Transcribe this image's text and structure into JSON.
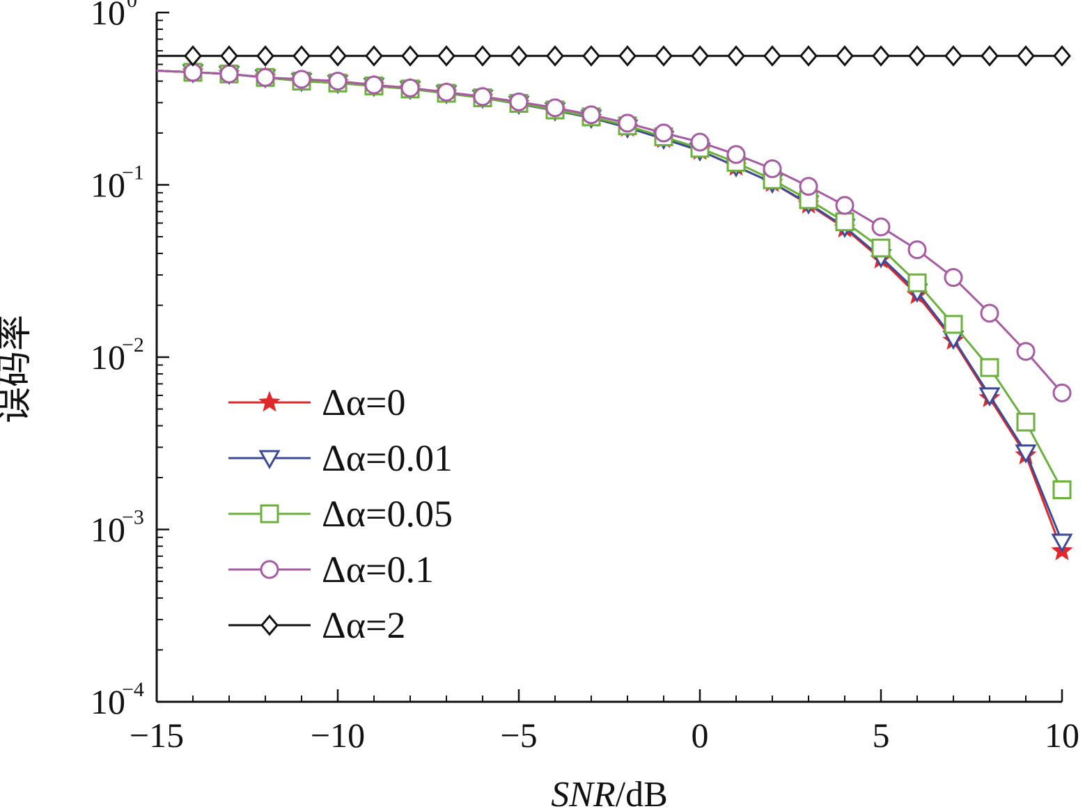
{
  "chart_data": {
    "type": "line",
    "xlabel": {
      "italic": "SNR",
      "unit": "/dB"
    },
    "ylabel": "误码率",
    "xlim": [
      -15,
      10
    ],
    "ylim": [
      0.0001,
      1
    ],
    "yscale": "log",
    "grid": false,
    "legend_position": "lower-left",
    "x_ticks": [
      {
        "value": -15,
        "label": "−15"
      },
      {
        "value": -10,
        "label": "−10"
      },
      {
        "value": -5,
        "label": "−5"
      },
      {
        "value": 0,
        "label": "0"
      },
      {
        "value": 5,
        "label": "5"
      },
      {
        "value": 10,
        "label": "10"
      }
    ],
    "y_ticks": [
      {
        "value": 1,
        "base": "10",
        "exp": "0"
      },
      {
        "value": 0.1,
        "base": "10",
        "exp": "−1"
      },
      {
        "value": 0.01,
        "base": "10",
        "exp": "−2"
      },
      {
        "value": 0.001,
        "base": "10",
        "exp": "−3"
      },
      {
        "value": 0.0001,
        "base": "10",
        "exp": "−4"
      }
    ],
    "x": [
      -15,
      -14,
      -13,
      -12,
      -11,
      -10,
      -9,
      -8,
      -7,
      -6,
      -5,
      -4,
      -3,
      -2,
      -1,
      0,
      1,
      2,
      3,
      4,
      5,
      6,
      7,
      8,
      9,
      10
    ],
    "series": [
      {
        "name": "Δα=0",
        "color": "#e0272a",
        "marker": "star",
        "values": [
          0.46,
          0.45,
          0.44,
          0.42,
          0.4,
          0.39,
          0.375,
          0.36,
          0.34,
          0.32,
          0.295,
          0.27,
          0.245,
          0.215,
          0.185,
          0.158,
          0.128,
          0.103,
          0.077,
          0.056,
          0.037,
          0.023,
          0.0125,
          0.0058,
          0.0027,
          0.00075
        ]
      },
      {
        "name": "Δα=0.01",
        "color": "#3a4a96",
        "marker": "triangle-down",
        "values": [
          0.46,
          0.45,
          0.44,
          0.42,
          0.4,
          0.39,
          0.375,
          0.36,
          0.34,
          0.32,
          0.295,
          0.27,
          0.245,
          0.215,
          0.185,
          0.158,
          0.128,
          0.103,
          0.078,
          0.057,
          0.038,
          0.024,
          0.0128,
          0.006,
          0.0028,
          0.00085
        ]
      },
      {
        "name": "Δα=0.05",
        "color": "#6ab03a",
        "marker": "square",
        "values": [
          0.46,
          0.45,
          0.44,
          0.42,
          0.4,
          0.39,
          0.375,
          0.36,
          0.34,
          0.32,
          0.297,
          0.272,
          0.248,
          0.22,
          0.19,
          0.163,
          0.135,
          0.107,
          0.082,
          0.061,
          0.043,
          0.027,
          0.0155,
          0.0087,
          0.0042,
          0.0017
        ]
      },
      {
        "name": "Δα=0.1",
        "color": "#a75aa3",
        "marker": "circle",
        "values": [
          0.46,
          0.45,
          0.44,
          0.42,
          0.41,
          0.4,
          0.38,
          0.365,
          0.345,
          0.325,
          0.303,
          0.28,
          0.255,
          0.228,
          0.2,
          0.177,
          0.15,
          0.124,
          0.098,
          0.076,
          0.057,
          0.042,
          0.029,
          0.018,
          0.0108,
          0.0062
        ]
      },
      {
        "name": "Δα=2",
        "color": "#111111",
        "marker": "diamond",
        "values": [
          0.56,
          0.56,
          0.56,
          0.56,
          0.56,
          0.56,
          0.56,
          0.56,
          0.56,
          0.56,
          0.56,
          0.56,
          0.56,
          0.56,
          0.56,
          0.56,
          0.56,
          0.56,
          0.56,
          0.56,
          0.56,
          0.56,
          0.56,
          0.56,
          0.56,
          0.56
        ]
      }
    ]
  }
}
